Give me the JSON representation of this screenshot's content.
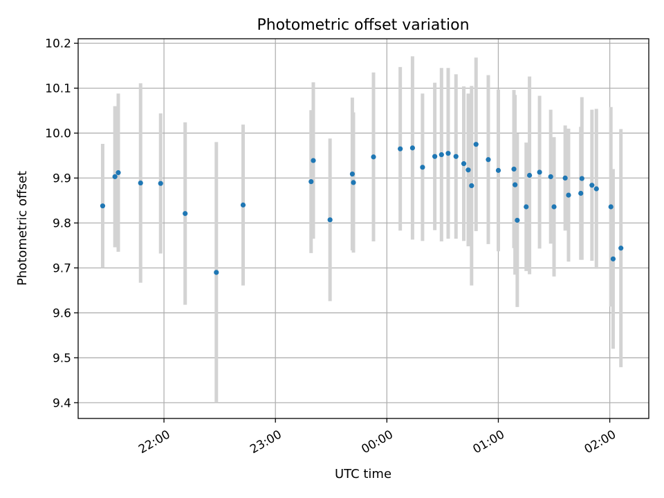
{
  "chart_data": {
    "type": "scatter",
    "title": "Photometric offset variation",
    "xlabel": "UTC time",
    "ylabel": "Photometric offset",
    "x_unit": "hours relative to 00:00 UTC",
    "xlim": [
      -2.77,
      2.35
    ],
    "ylim": [
      9.365,
      10.21
    ],
    "xticks": [
      {
        "value": -2,
        "label": "22:00"
      },
      {
        "value": -1,
        "label": "23:00"
      },
      {
        "value": 0,
        "label": "00:00"
      },
      {
        "value": 1,
        "label": "01:00"
      },
      {
        "value": 2,
        "label": "02:00"
      }
    ],
    "yticks": [
      {
        "value": 9.4,
        "label": "9.4"
      },
      {
        "value": 9.5,
        "label": "9.5"
      },
      {
        "value": 9.6,
        "label": "9.6"
      },
      {
        "value": 9.7,
        "label": "9.7"
      },
      {
        "value": 9.8,
        "label": "9.8"
      },
      {
        "value": 9.9,
        "label": "9.9"
      },
      {
        "value": 10.0,
        "label": "10.0"
      },
      {
        "value": 10.1,
        "label": "10.1"
      },
      {
        "value": 10.2,
        "label": "10.2"
      }
    ],
    "grid": true,
    "colors": {
      "point": "#1f77b4",
      "errorbar": "#d3d3d3",
      "grid": "#b0b0b0"
    },
    "points": [
      {
        "x": -2.55,
        "y": 9.838,
        "err": 0.138
      },
      {
        "x": -2.44,
        "y": 9.903,
        "err": 0.157
      },
      {
        "x": -2.41,
        "y": 9.912,
        "err": 0.176
      },
      {
        "x": -2.21,
        "y": 9.889,
        "err": 0.222
      },
      {
        "x": -2.03,
        "y": 9.888,
        "err": 0.156
      },
      {
        "x": -1.81,
        "y": 9.821,
        "err": 0.203
      },
      {
        "x": -1.53,
        "y": 9.69,
        "err": 0.29
      },
      {
        "x": -1.29,
        "y": 9.84,
        "err": 0.179
      },
      {
        "x": -0.68,
        "y": 9.892,
        "err": 0.159
      },
      {
        "x": -0.66,
        "y": 9.939,
        "err": 0.174
      },
      {
        "x": -0.51,
        "y": 9.807,
        "err": 0.181
      },
      {
        "x": -0.31,
        "y": 9.909,
        "err": 0.17
      },
      {
        "x": -0.3,
        "y": 9.89,
        "err": 0.156
      },
      {
        "x": -0.12,
        "y": 9.947,
        "err": 0.188
      },
      {
        "x": 0.12,
        "y": 9.965,
        "err": 0.182
      },
      {
        "x": 0.23,
        "y": 9.967,
        "err": 0.204
      },
      {
        "x": 0.32,
        "y": 9.924,
        "err": 0.164
      },
      {
        "x": 0.43,
        "y": 9.948,
        "err": 0.164
      },
      {
        "x": 0.49,
        "y": 9.952,
        "err": 0.193
      },
      {
        "x": 0.55,
        "y": 9.955,
        "err": 0.19
      },
      {
        "x": 0.62,
        "y": 9.948,
        "err": 0.183
      },
      {
        "x": 0.69,
        "y": 9.932,
        "err": 0.172
      },
      {
        "x": 0.73,
        "y": 9.918,
        "err": 0.17
      },
      {
        "x": 0.76,
        "y": 9.883,
        "err": 0.222
      },
      {
        "x": 0.8,
        "y": 9.975,
        "err": 0.193
      },
      {
        "x": 0.91,
        "y": 9.941,
        "err": 0.188
      },
      {
        "x": 1.0,
        "y": 9.917,
        "err": 0.18
      },
      {
        "x": 1.14,
        "y": 9.92,
        "err": 0.176
      },
      {
        "x": 1.15,
        "y": 9.885,
        "err": 0.2
      },
      {
        "x": 1.17,
        "y": 9.806,
        "err": 0.193
      },
      {
        "x": 1.25,
        "y": 9.836,
        "err": 0.143
      },
      {
        "x": 1.28,
        "y": 9.906,
        "err": 0.22
      },
      {
        "x": 1.37,
        "y": 9.913,
        "err": 0.17
      },
      {
        "x": 1.47,
        "y": 9.903,
        "err": 0.149
      },
      {
        "x": 1.5,
        "y": 9.836,
        "err": 0.155
      },
      {
        "x": 1.6,
        "y": 9.9,
        "err": 0.117
      },
      {
        "x": 1.63,
        "y": 9.862,
        "err": 0.148
      },
      {
        "x": 1.74,
        "y": 9.866,
        "err": 0.148
      },
      {
        "x": 1.75,
        "y": 9.899,
        "err": 0.181
      },
      {
        "x": 1.84,
        "y": 9.884,
        "err": 0.168
      },
      {
        "x": 1.88,
        "y": 9.876,
        "err": 0.178
      },
      {
        "x": 2.01,
        "y": 9.836,
        "err": 0.222
      },
      {
        "x": 2.03,
        "y": 9.72,
        "err": 0.2
      },
      {
        "x": 2.1,
        "y": 9.744,
        "err": 0.265
      }
    ]
  }
}
